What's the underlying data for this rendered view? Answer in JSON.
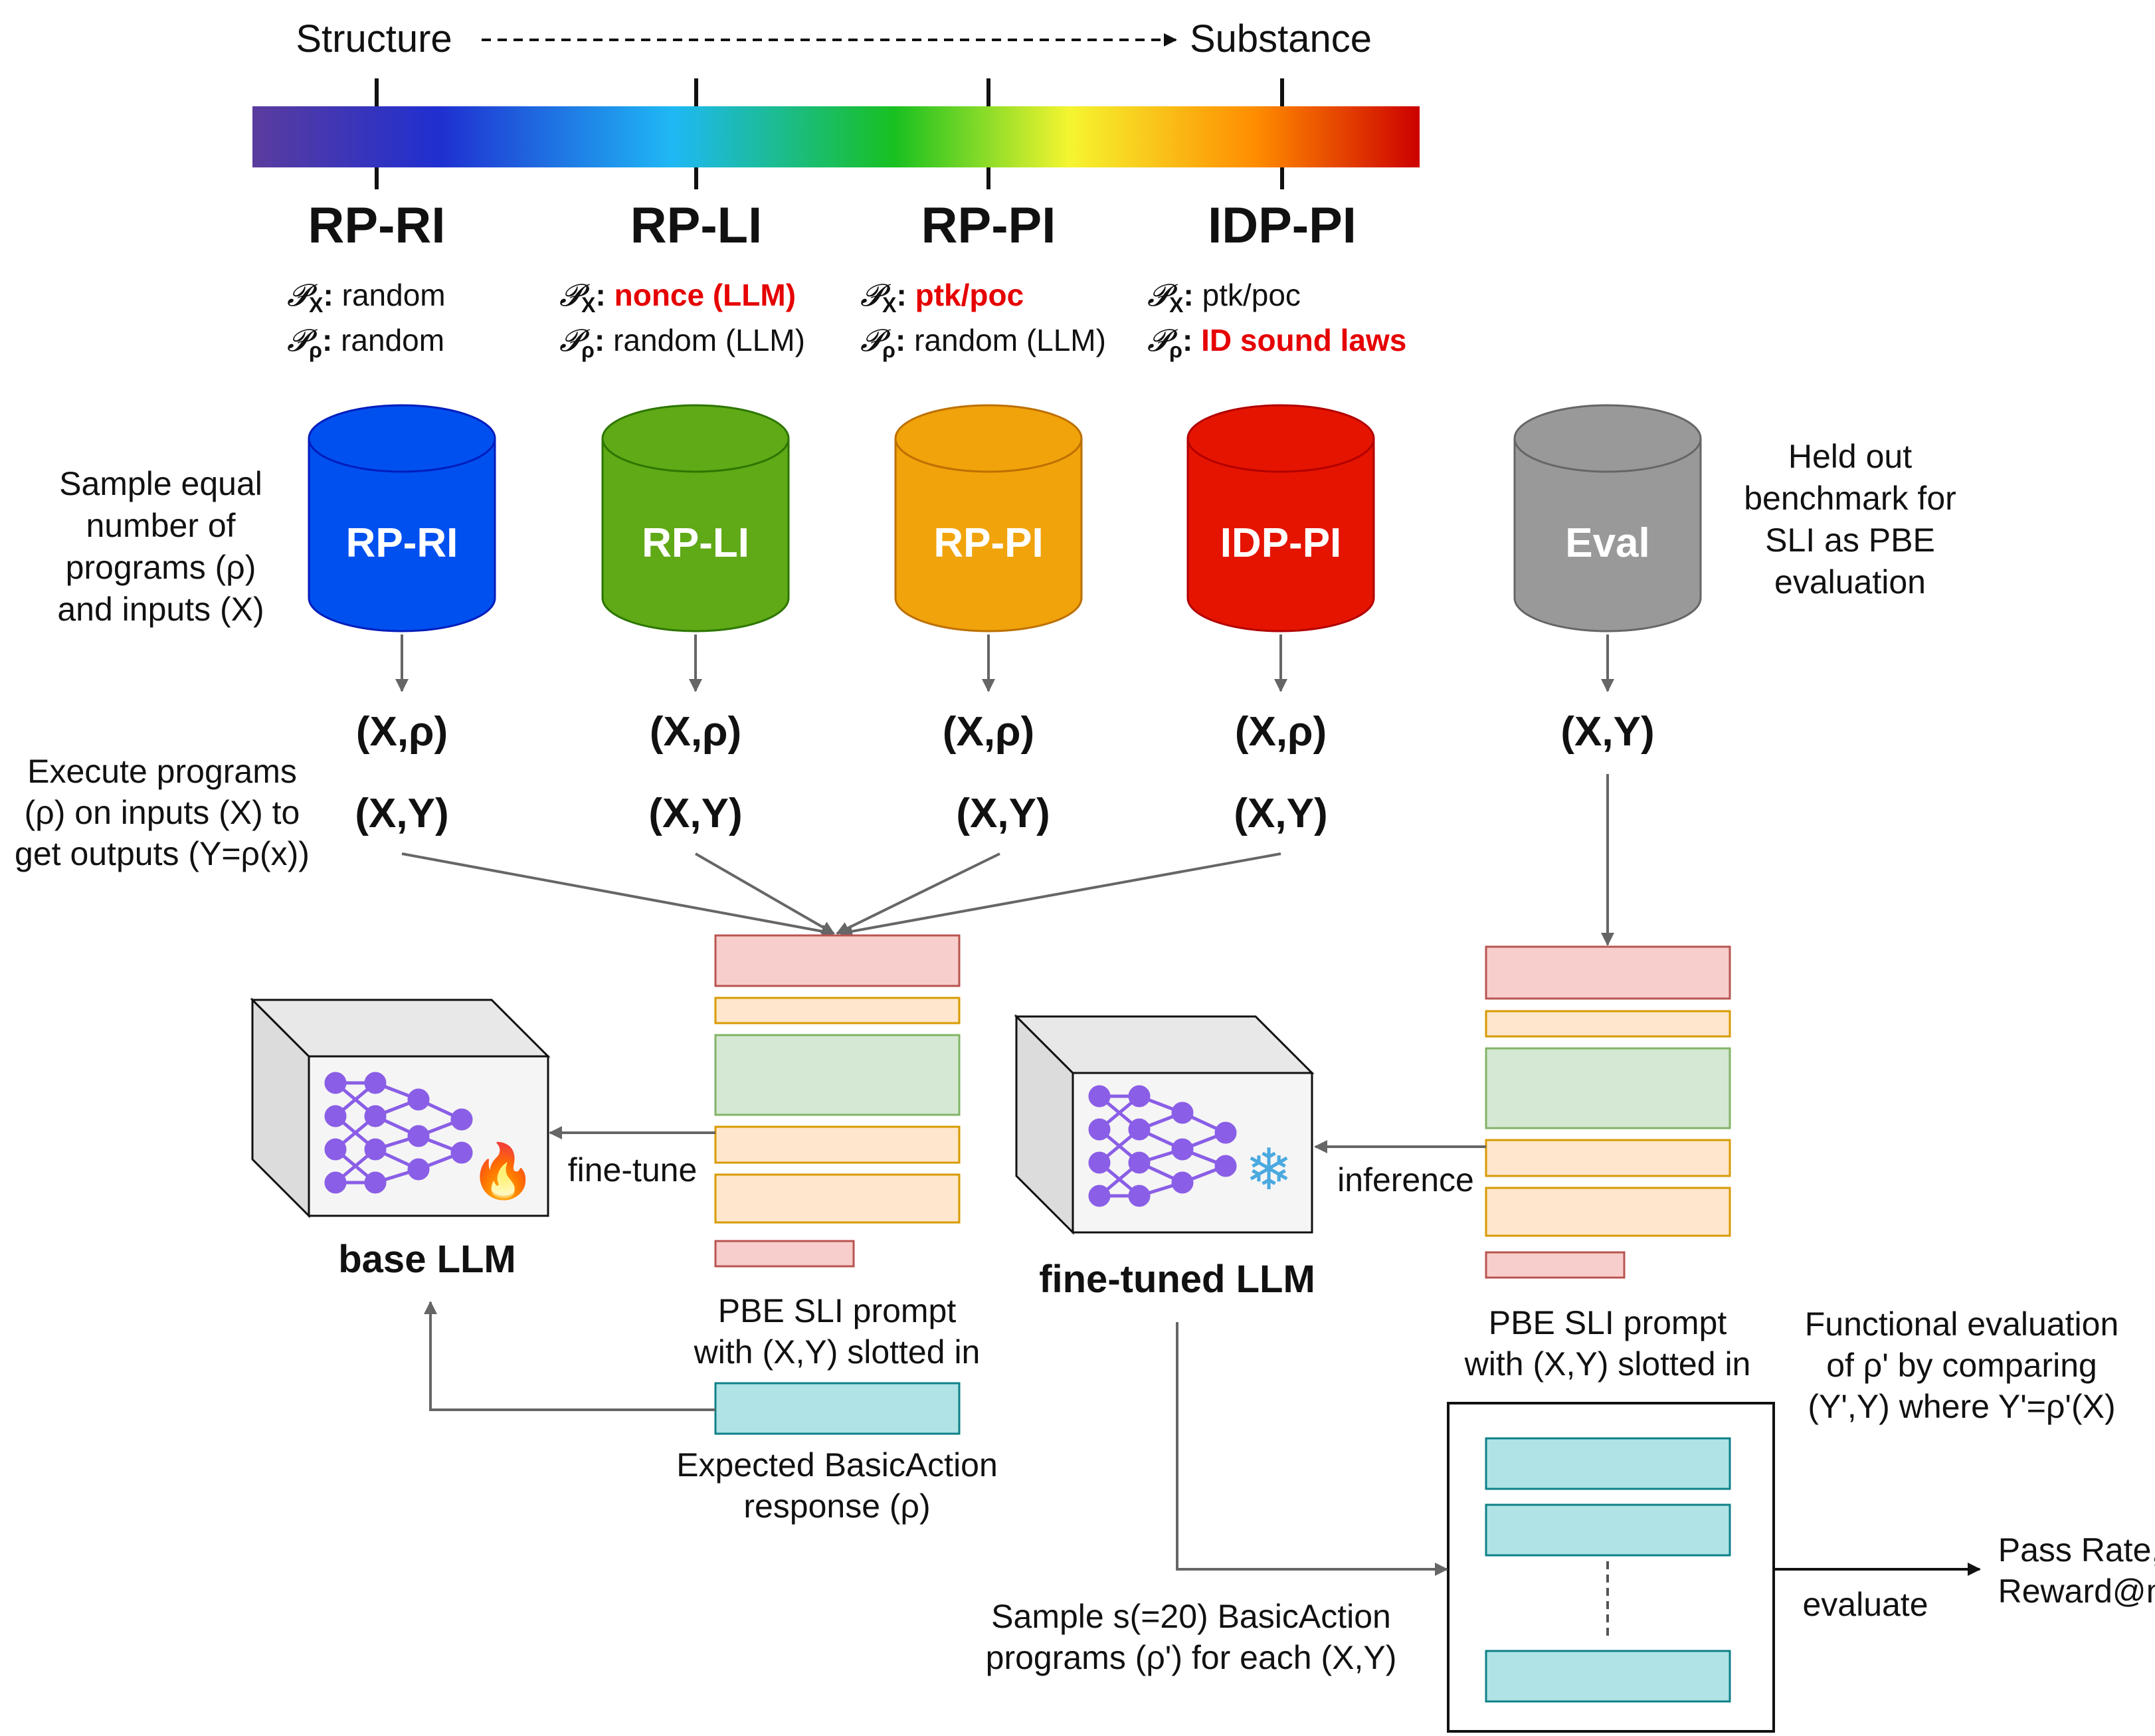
{
  "scale": {
    "left_label": "Structure",
    "right_label": "Substance",
    "gradient_colors": [
      "#5b3c9e",
      "#1f2fd0",
      "#1fb8f5",
      "#18c020",
      "#f5f530",
      "#ff8c00",
      "#cc0000"
    ]
  },
  "conditions": [
    {
      "name": "RP-RI",
      "px_label": "𝓟",
      "px_sub": "X",
      "px_value": "random",
      "px_highlight": false,
      "pr_label": "𝓟",
      "pr_sub": "ρ",
      "pr_value": "random",
      "pr_highlight": false
    },
    {
      "name": "RP-LI",
      "px_label": "𝓟",
      "px_sub": "X",
      "px_value": "nonce (LLM)",
      "px_highlight": true,
      "pr_label": "𝓟",
      "pr_sub": "ρ",
      "pr_value": "random (LLM)",
      "pr_highlight": false
    },
    {
      "name": "RP-PI",
      "px_label": "𝓟",
      "px_sub": "X",
      "px_value": "ptk/poc",
      "px_highlight": true,
      "pr_label": "𝓟",
      "pr_sub": "ρ",
      "pr_value": "random (LLM)",
      "pr_highlight": false
    },
    {
      "name": "IDP-PI",
      "px_label": "𝓟",
      "px_sub": "X",
      "px_value": "ptk/poc",
      "px_highlight": false,
      "pr_label": "𝓟",
      "pr_sub": "ρ",
      "pr_value": "ID sound laws",
      "pr_highlight": true
    }
  ],
  "databases": [
    {
      "label": "RP-RI",
      "fill": "#0050ef",
      "stroke": "#001dbc"
    },
    {
      "label": "RP-LI",
      "fill": "#60a917",
      "stroke": "#2d7600"
    },
    {
      "label": "RP-PI",
      "fill": "#f0a30a",
      "stroke": "#bd7000"
    },
    {
      "label": "IDP-PI",
      "fill": "#e51400",
      "stroke": "#b20000"
    },
    {
      "label": "Eval",
      "fill": "#999999",
      "stroke": "#666666"
    }
  ],
  "notes": {
    "sample_line1": "Sample equal",
    "sample_line2": "number of",
    "sample_line3": "programs (ρ)",
    "sample_line4": "and inputs (X)",
    "heldout_line1": "Held out",
    "heldout_line2": "benchmark for",
    "heldout_line3": "SLI as PBE",
    "heldout_line4": "evaluation",
    "execute_line1": "Execute programs",
    "execute_line2": "(ρ) on inputs (X) to",
    "execute_line3": "get outputs (Y=ρ(x))"
  },
  "pairs": {
    "x_rho": "(X,ρ)",
    "x_y": "(X,Y)"
  },
  "models": {
    "base_label": "base LLM",
    "finetuned_label": "fine-tuned LLM",
    "fire_glyph": "🔥",
    "snow_glyph": "❄",
    "icons": [
      "neural-network-icon",
      "fire-icon",
      "snowflake-icon"
    ]
  },
  "edges": {
    "finetune": "fine-tune",
    "inference": "inference",
    "evaluate": "evaluate"
  },
  "captions": {
    "prompt_line1": "PBE SLI prompt",
    "prompt_line2": "with (X,Y) slotted in",
    "expected_line1": "Expected BasicAction",
    "expected_line2": "response (ρ)",
    "sample_line1": "Sample s(=20) BasicAction",
    "sample_line2": "programs (ρ') for each (X,Y)",
    "functional_line1": "Functional evaluation",
    "functional_line2": "of ρ' by comparing",
    "functional_line3": "(Y',Y) where Y'=ρ'(X)",
    "result_line1": "Pass Rate,",
    "result_line2": "Reward@m"
  },
  "colors": {
    "prompt_red_fill": "#f8cecc",
    "prompt_red_stroke": "#b85450",
    "prompt_orange_fill": "#ffe6cc",
    "prompt_orange_stroke": "#d79b00",
    "prompt_green_fill": "#d5e8d4",
    "prompt_green_stroke": "#82b366",
    "response_fill": "#b0e3e6",
    "response_stroke": "#0e8088",
    "network_node": "#8a5ee6",
    "highlight_red": "#e60000"
  }
}
